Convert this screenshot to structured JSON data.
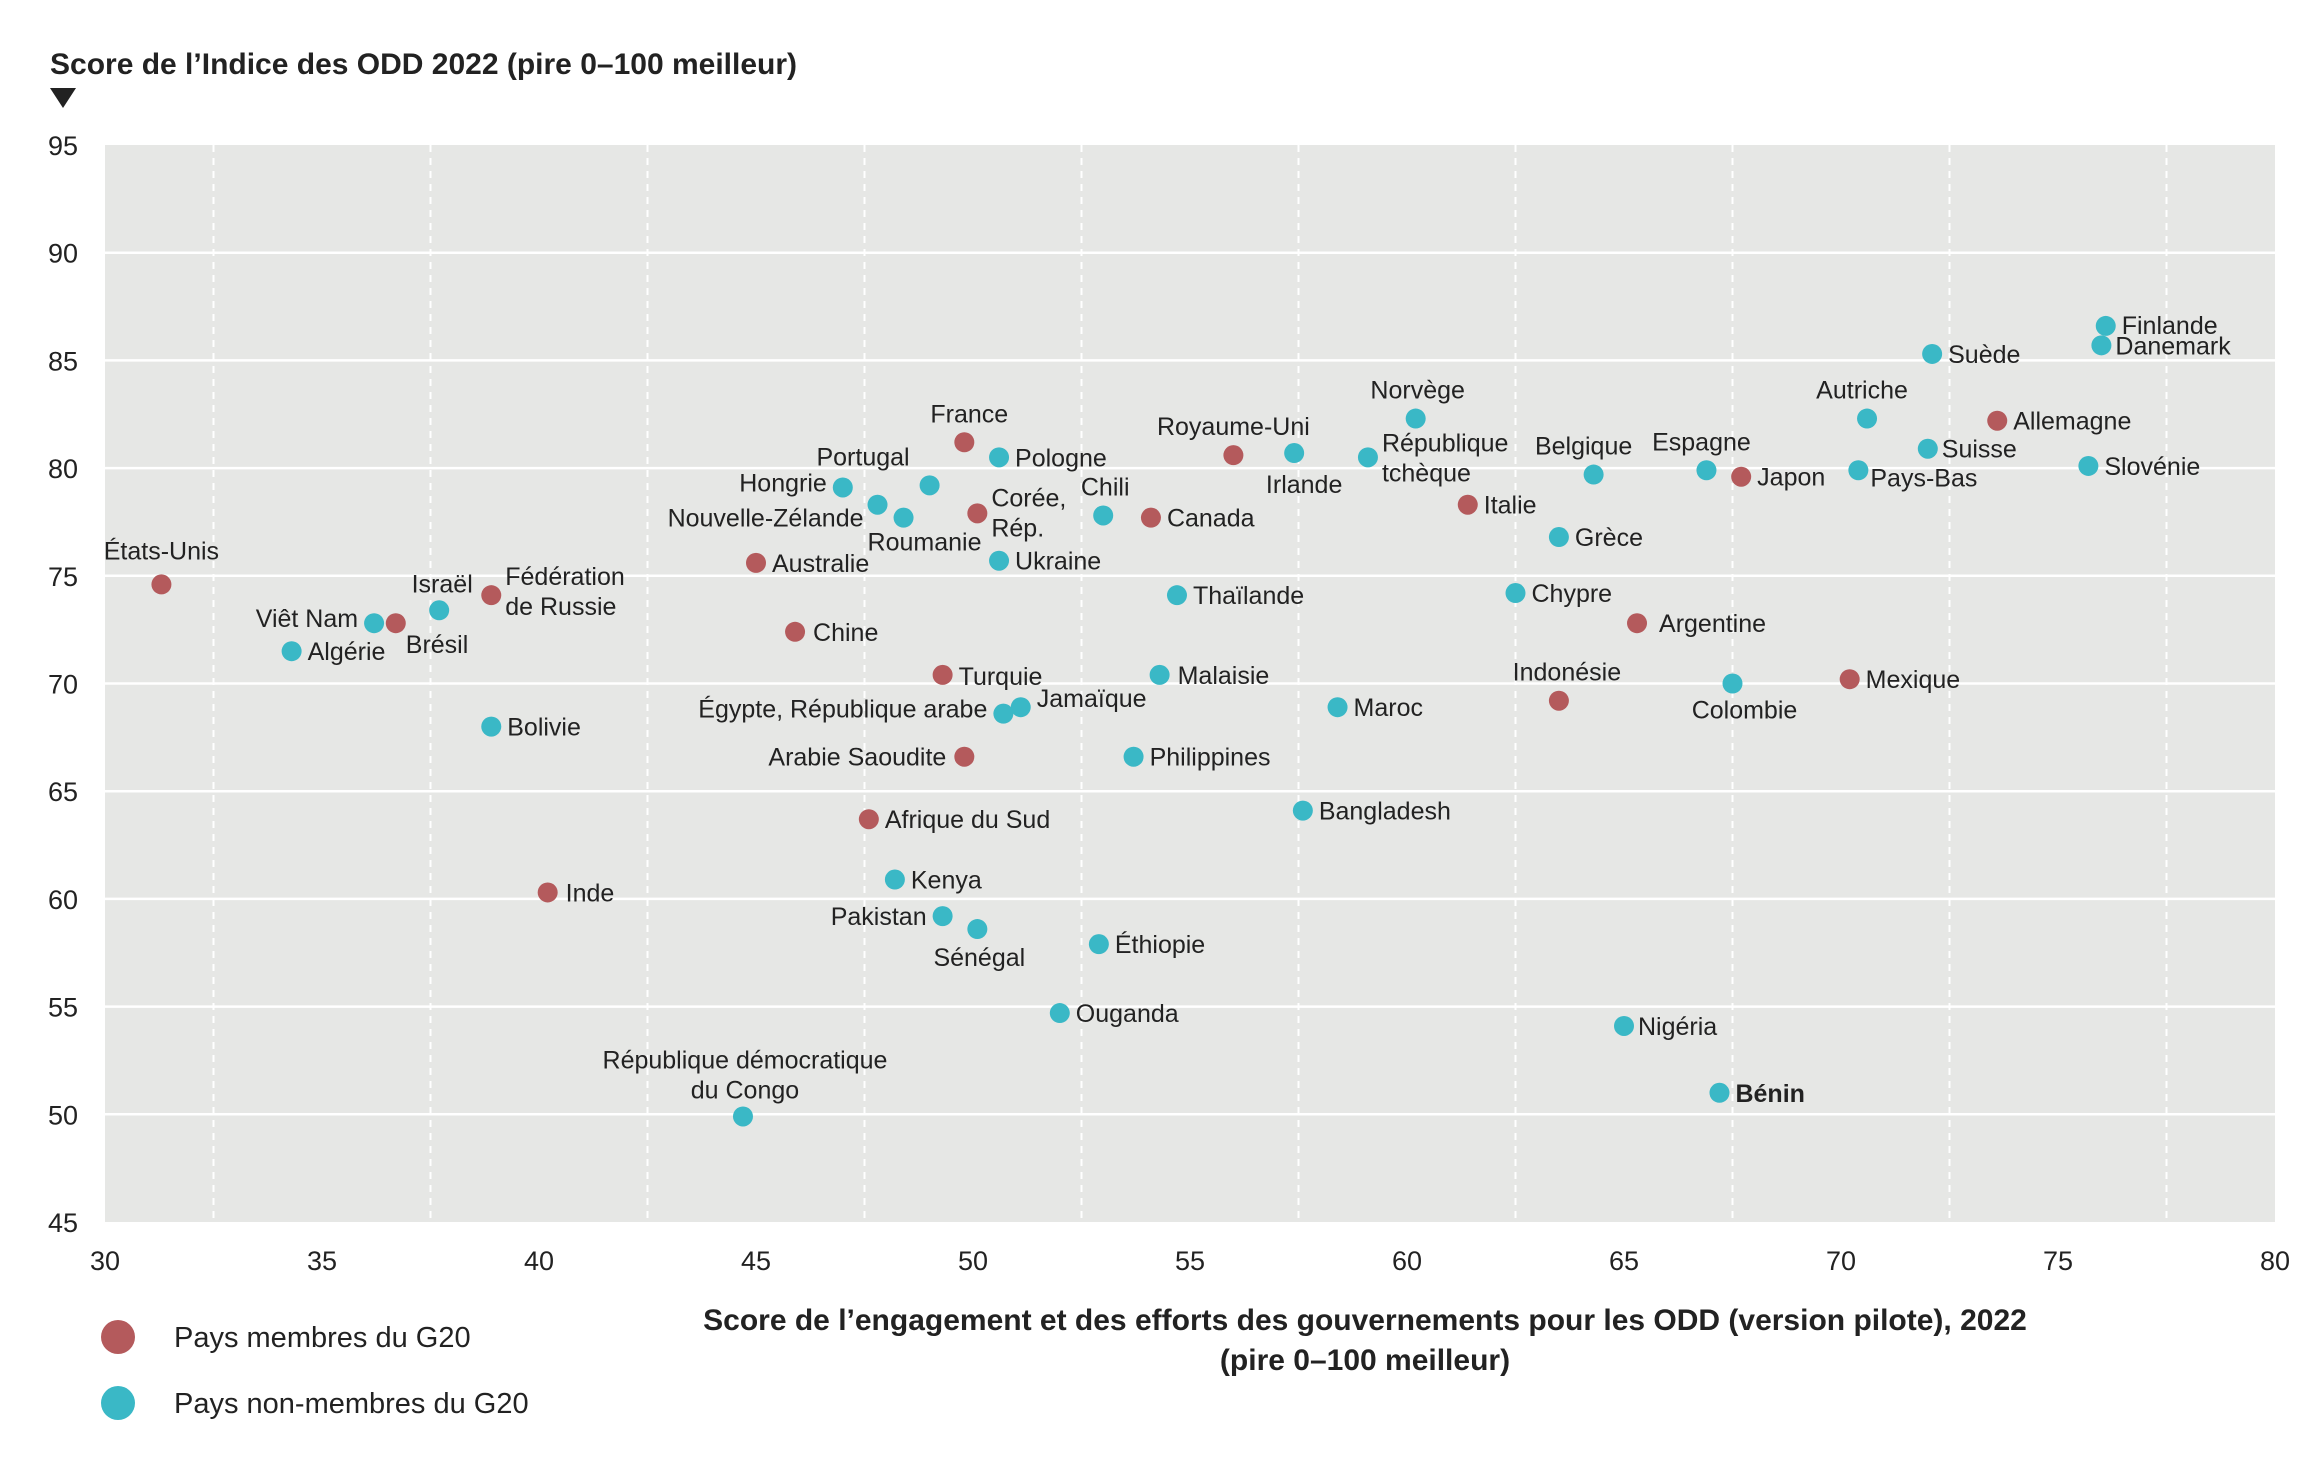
{
  "chart_data": {
    "type": "scatter",
    "ylabel": "Score de l’Indice des ODD 2022 (pire 0–100 meilleur)",
    "xlabel_lines": [
      "Score de l’engagement et des efforts des gouvernements pour les ODD (version pilote), 2022",
      "(pire 0–100 meilleur)"
    ],
    "xlim": [
      30,
      80
    ],
    "ylim": [
      45,
      95
    ],
    "x_ticks": [
      "30",
      "35",
      "40",
      "45",
      "50",
      "55",
      "60",
      "65",
      "70",
      "75",
      "80"
    ],
    "y_ticks": [
      "45",
      "50",
      "55",
      "60",
      "65",
      "70",
      "75",
      "80",
      "85",
      "90",
      "95"
    ],
    "grid": true,
    "legend_placement": "bottom-left",
    "series": [
      {
        "name": "Pays membres du G20",
        "color": "#b45a5c",
        "points": [
          {
            "label": "États-Unis",
            "x": 31.3,
            "y": 74.6
          },
          {
            "label": "Brésil",
            "x": 36.7,
            "y": 72.8
          },
          {
            "label": "Fédération de Russie",
            "x": 38.9,
            "y": 74.1
          },
          {
            "label": "Inde",
            "x": 40.2,
            "y": 60.3
          },
          {
            "label": "Australie",
            "x": 45.0,
            "y": 75.6
          },
          {
            "label": "Chine",
            "x": 45.9,
            "y": 72.4
          },
          {
            "label": "Afrique du Sud",
            "x": 47.6,
            "y": 63.7
          },
          {
            "label": "Turquie",
            "x": 49.3,
            "y": 70.4
          },
          {
            "label": "Arabie Saoudite",
            "x": 49.8,
            "y": 66.6
          },
          {
            "label": "France",
            "x": 49.8,
            "y": 81.2
          },
          {
            "label": "Corée, Rép.",
            "x": 50.1,
            "y": 77.9
          },
          {
            "label": "Canada",
            "x": 54.1,
            "y": 77.7
          },
          {
            "label": "Royaume-Uni",
            "x": 56.0,
            "y": 80.6
          },
          {
            "label": "Italie",
            "x": 61.4,
            "y": 78.3
          },
          {
            "label": "Indonésie",
            "x": 63.5,
            "y": 69.2
          },
          {
            "label": "Argentine",
            "x": 65.3,
            "y": 72.8
          },
          {
            "label": "Japon",
            "x": 67.7,
            "y": 79.6
          },
          {
            "label": "Mexique",
            "x": 70.2,
            "y": 70.2
          },
          {
            "label": "Allemagne",
            "x": 73.6,
            "y": 82.2
          }
        ]
      },
      {
        "name": "Pays non-membres du G20",
        "color": "#3ab8c6",
        "points": [
          {
            "label": "Algérie",
            "x": 34.3,
            "y": 71.5
          },
          {
            "label": "Viêt Nam",
            "x": 36.2,
            "y": 72.8
          },
          {
            "label": "Israël",
            "x": 37.7,
            "y": 73.4
          },
          {
            "label": "Bolivie",
            "x": 38.9,
            "y": 68.0
          },
          {
            "label": "République démocratique du Congo",
            "x": 44.7,
            "y": 49.9
          },
          {
            "label": "Hongrie",
            "x": 47.0,
            "y": 79.1
          },
          {
            "label": "Nouvelle-Zélande",
            "x": 47.8,
            "y": 78.3
          },
          {
            "label": "Kenya",
            "x": 48.2,
            "y": 60.9
          },
          {
            "label": "Roumanie",
            "x": 48.4,
            "y": 77.7
          },
          {
            "label": "Portugal",
            "x": 49.0,
            "y": 79.2
          },
          {
            "label": "Pakistan",
            "x": 49.3,
            "y": 59.2
          },
          {
            "label": "Sénégal",
            "x": 50.1,
            "y": 58.6
          },
          {
            "label": "Pologne",
            "x": 50.6,
            "y": 80.5
          },
          {
            "label": "Ukraine",
            "x": 50.6,
            "y": 75.7
          },
          {
            "label": "Égypte, République arabe",
            "x": 50.7,
            "y": 68.6
          },
          {
            "label": "Jamaïque",
            "x": 51.1,
            "y": 68.9
          },
          {
            "label": "Ouganda",
            "x": 52.0,
            "y": 54.7
          },
          {
            "label": "Éthiopie",
            "x": 52.9,
            "y": 57.9
          },
          {
            "label": "Chili",
            "x": 53.0,
            "y": 77.8
          },
          {
            "label": "Philippines",
            "x": 53.7,
            "y": 66.6
          },
          {
            "label": "Malaisie",
            "x": 54.3,
            "y": 70.4
          },
          {
            "label": "Thaïlande",
            "x": 54.7,
            "y": 74.1
          },
          {
            "label": "Irlande",
            "x": 57.4,
            "y": 80.7
          },
          {
            "label": "Bangladesh",
            "x": 57.6,
            "y": 64.1
          },
          {
            "label": "Maroc",
            "x": 58.4,
            "y": 68.9
          },
          {
            "label": "République tchèque",
            "x": 59.1,
            "y": 80.5
          },
          {
            "label": "Norvège",
            "x": 60.2,
            "y": 82.3
          },
          {
            "label": "Chypre",
            "x": 62.5,
            "y": 74.2
          },
          {
            "label": "Grèce",
            "x": 63.5,
            "y": 76.8
          },
          {
            "label": "Belgique",
            "x": 64.3,
            "y": 79.7
          },
          {
            "label": "Nigéria",
            "x": 65.0,
            "y": 54.1
          },
          {
            "label": "Espagne",
            "x": 66.9,
            "y": 79.9
          },
          {
            "label": "Bénin",
            "x": 67.2,
            "y": 51.0
          },
          {
            "label": "Colombie",
            "x": 67.5,
            "y": 70.0
          },
          {
            "label": "Pays-Bas",
            "x": 70.4,
            "y": 79.9
          },
          {
            "label": "Autriche",
            "x": 70.6,
            "y": 82.3
          },
          {
            "label": "Suisse",
            "x": 72.0,
            "y": 80.9
          },
          {
            "label": "Suède",
            "x": 72.1,
            "y": 85.3
          },
          {
            "label": "Slovénie",
            "x": 75.7,
            "y": 80.1
          },
          {
            "label": "Danemark",
            "x": 76.0,
            "y": 85.7
          },
          {
            "label": "Finlande",
            "x": 76.1,
            "y": 86.6
          }
        ]
      }
    ],
    "highlight": {
      "label": "Bénin",
      "color": "#e0663a"
    },
    "background_color": "#e6e7e5",
    "grid_color": "#ffffff"
  }
}
